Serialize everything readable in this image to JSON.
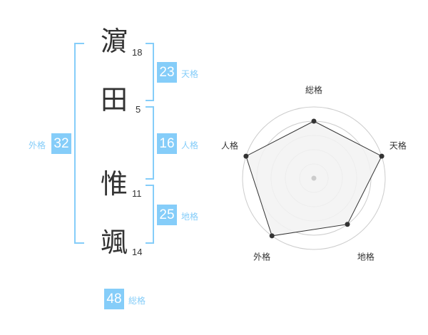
{
  "colors": {
    "accent": "#85cdf9",
    "ring": "#cccccc",
    "fill": "#f2f2f2",
    "line": "#333333"
  },
  "name": {
    "chars": [
      {
        "char": "濵",
        "strokes": "18"
      },
      {
        "char": "田",
        "strokes": "5"
      },
      {
        "char": "惟",
        "strokes": "11"
      },
      {
        "char": "颯",
        "strokes": "14"
      }
    ]
  },
  "kaku": {
    "tenkaku": {
      "value": "23",
      "label": "天格"
    },
    "jinkaku": {
      "value": "16",
      "label": "人格"
    },
    "chikaku": {
      "value": "25",
      "label": "地格"
    },
    "gaikaku": {
      "value": "32",
      "label": "外格"
    },
    "soukaku": {
      "value": "48",
      "label": "総格"
    }
  },
  "chart_data": {
    "type": "radar",
    "axes": [
      "総格",
      "天格",
      "地格",
      "外格",
      "人格"
    ],
    "values": [
      4,
      5,
      4,
      5,
      5
    ],
    "range": [
      0,
      5
    ],
    "rings": 5
  }
}
